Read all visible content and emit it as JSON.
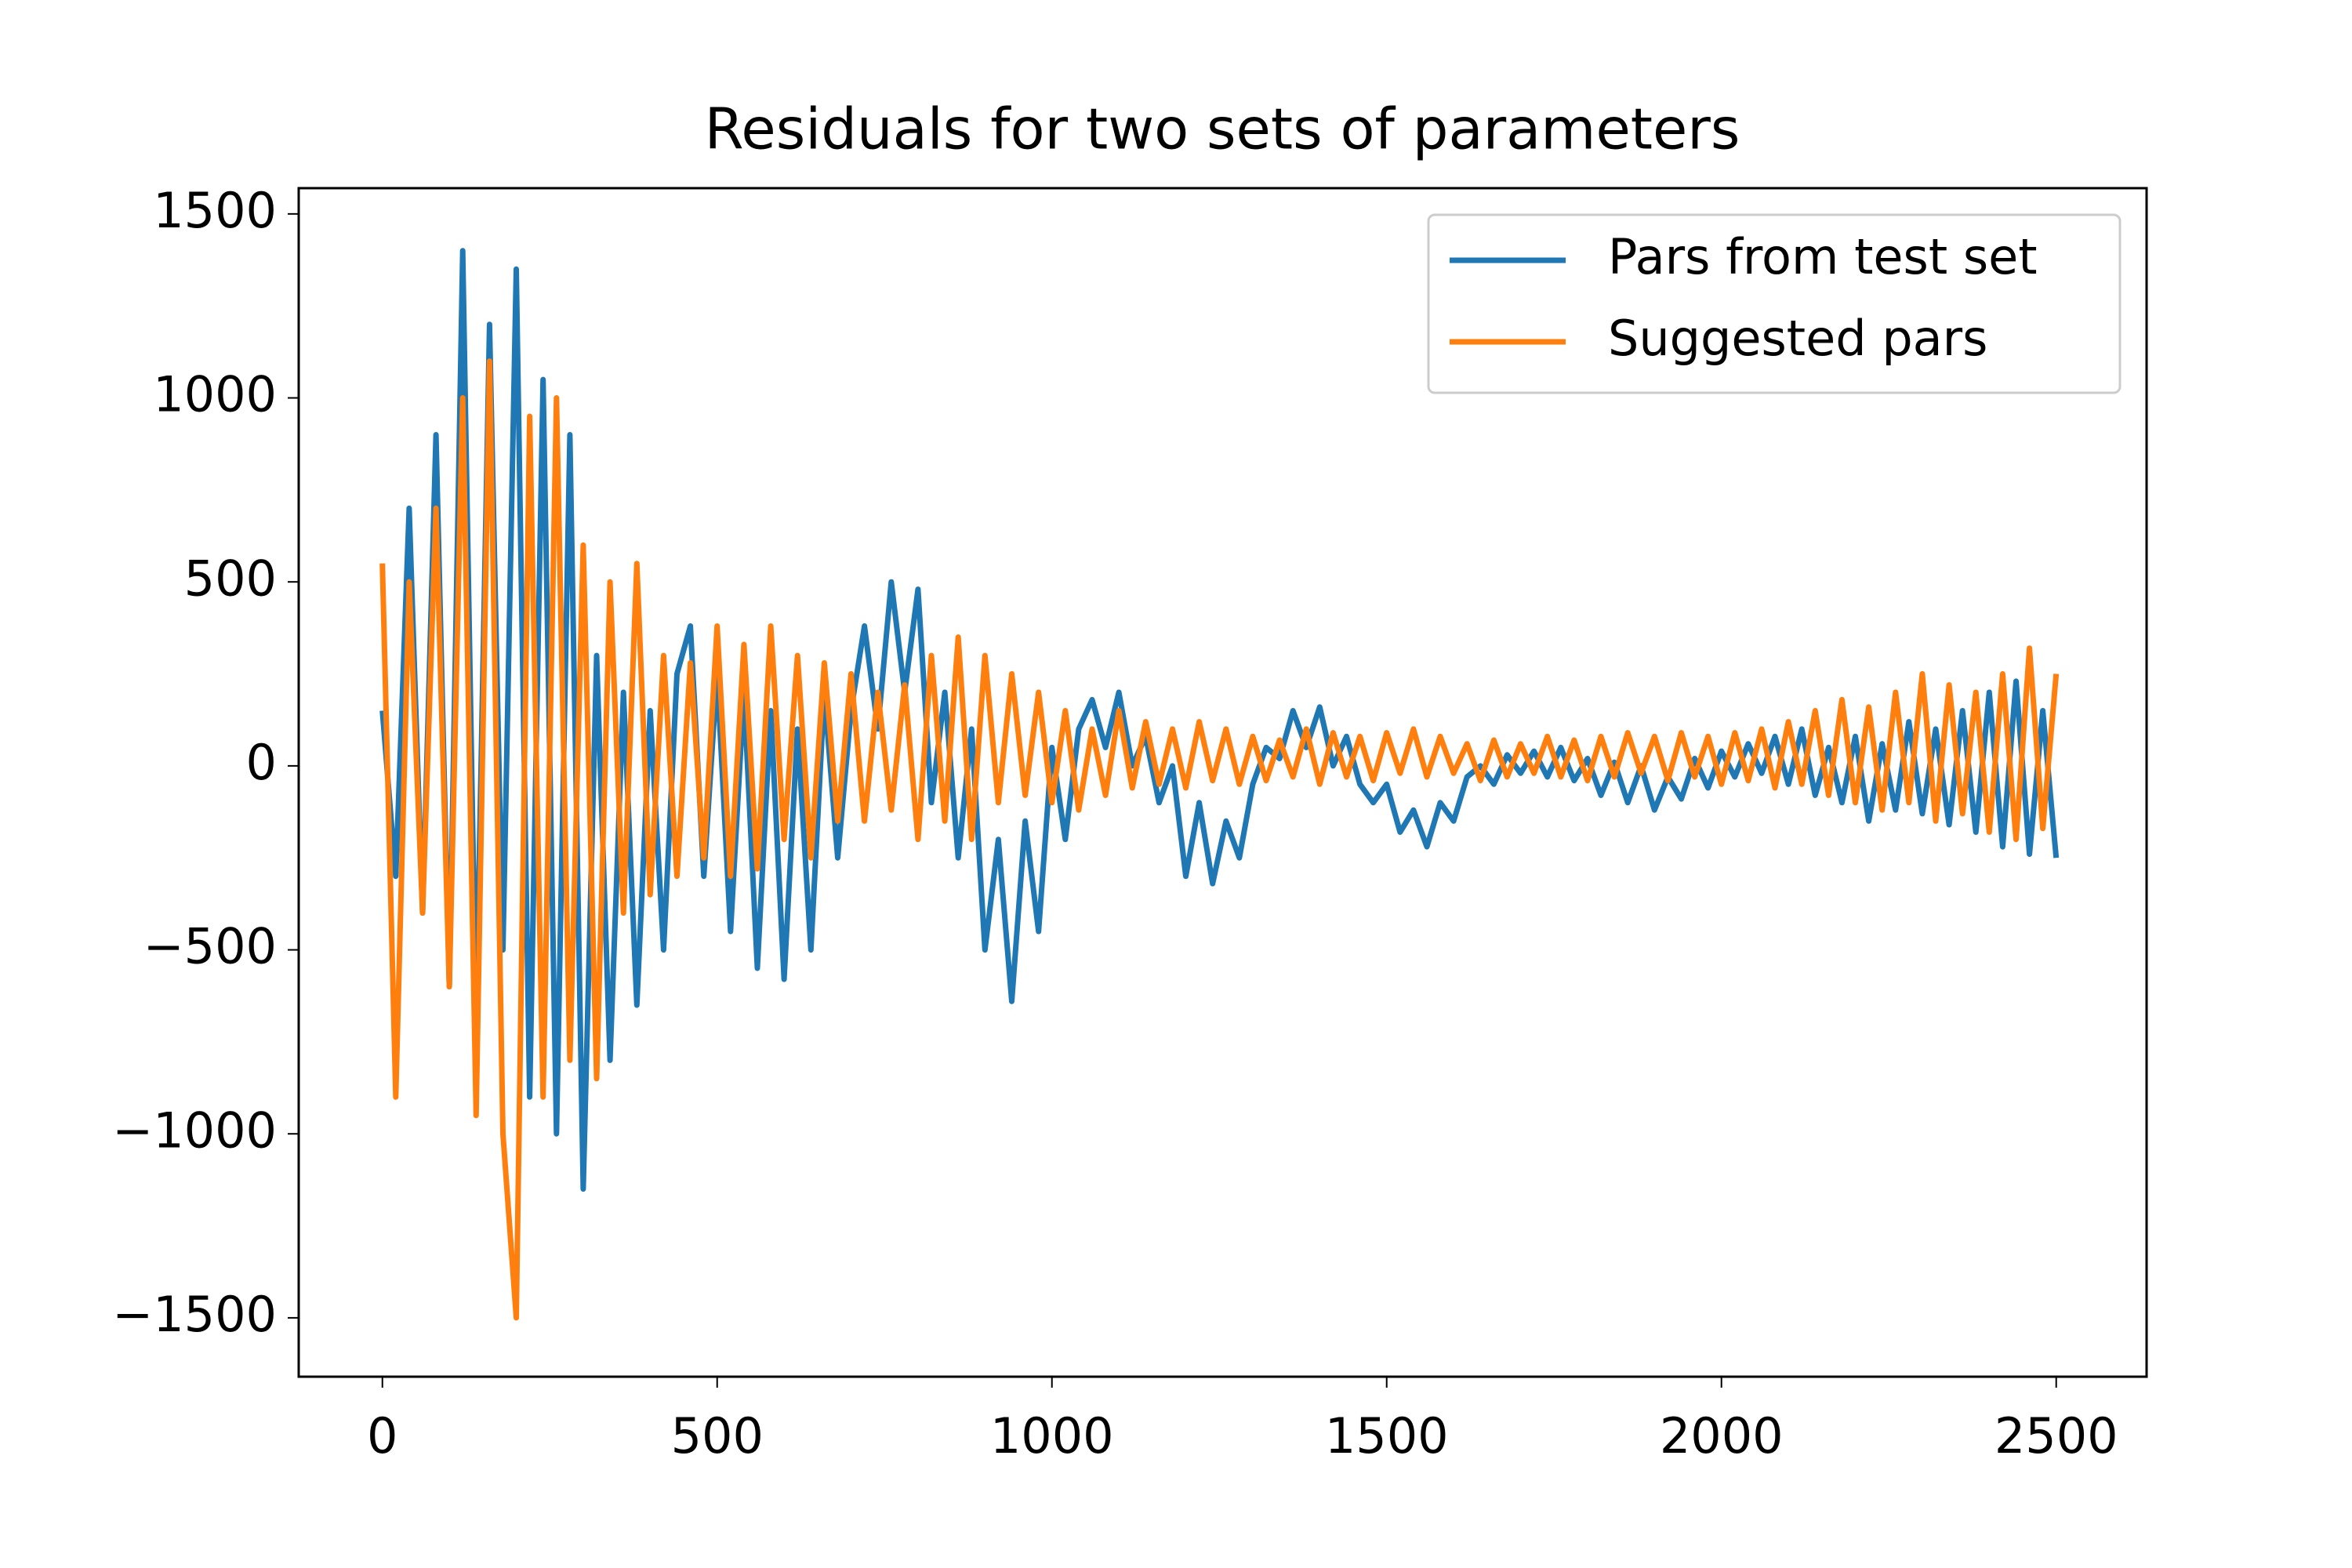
{
  "chart_data": {
    "type": "line",
    "title": "Residuals for two sets of parameters",
    "x": [
      0,
      20,
      40,
      60,
      80,
      100,
      120,
      140,
      160,
      180,
      200,
      220,
      240,
      260,
      280,
      300,
      320,
      340,
      360,
      380,
      400,
      420,
      440,
      460,
      480,
      500,
      520,
      540,
      560,
      580,
      600,
      620,
      640,
      660,
      680,
      700,
      720,
      740,
      760,
      780,
      800,
      820,
      840,
      860,
      880,
      900,
      920,
      940,
      960,
      980,
      1000,
      1020,
      1040,
      1060,
      1080,
      1100,
      1120,
      1140,
      1160,
      1180,
      1200,
      1220,
      1240,
      1260,
      1280,
      1300,
      1320,
      1340,
      1360,
      1380,
      1400,
      1420,
      1440,
      1460,
      1480,
      1500,
      1520,
      1540,
      1560,
      1580,
      1600,
      1620,
      1640,
      1660,
      1680,
      1700,
      1720,
      1740,
      1760,
      1780,
      1800,
      1820,
      1840,
      1860,
      1880,
      1900,
      1920,
      1940,
      1960,
      1980,
      2000,
      2020,
      2040,
      2060,
      2080,
      2100,
      2120,
      2140,
      2160,
      2180,
      2200,
      2220,
      2240,
      2260,
      2280,
      2300,
      2320,
      2340,
      2360,
      2380,
      2400,
      2420,
      2440,
      2460,
      2480,
      2500
    ],
    "series": [
      {
        "name": "Pars from test set",
        "color": "#1f77b4",
        "values": [
          150,
          -300,
          700,
          -400,
          900,
          -600,
          1400,
          -700,
          1200,
          -500,
          1350,
          -900,
          1050,
          -1000,
          900,
          -1150,
          300,
          -800,
          200,
          -650,
          150,
          -500,
          250,
          380,
          -300,
          250,
          -450,
          200,
          -550,
          150,
          -580,
          100,
          -500,
          200,
          -250,
          150,
          380,
          100,
          500,
          200,
          480,
          -100,
          200,
          -250,
          100,
          -500,
          -200,
          -640,
          -150,
          -450,
          50,
          -200,
          100,
          180,
          50,
          200,
          0,
          80,
          -100,
          0,
          -300,
          -100,
          -320,
          -150,
          -250,
          -50,
          50,
          20,
          150,
          50,
          160,
          0,
          80,
          -50,
          -100,
          -50,
          -180,
          -120,
          -220,
          -100,
          -150,
          -30,
          0,
          -50,
          30,
          -20,
          40,
          -30,
          50,
          -40,
          20,
          -80,
          10,
          -100,
          0,
          -120,
          -30,
          -90,
          20,
          -60,
          40,
          -30,
          60,
          -20,
          80,
          -50,
          100,
          -80,
          50,
          -100,
          80,
          -150,
          60,
          -120,
          120,
          -130,
          100,
          -160,
          150,
          -180,
          200,
          -220,
          230,
          -240,
          150,
          -250
        ]
      },
      {
        "name": "Suggested pars",
        "color": "#ff7f0e",
        "values": [
          550,
          -900,
          500,
          -400,
          700,
          -600,
          1000,
          -950,
          1100,
          -1000,
          -1500,
          950,
          -900,
          1000,
          -800,
          600,
          -850,
          500,
          -400,
          550,
          -350,
          300,
          -300,
          280,
          -250,
          380,
          -300,
          330,
          -280,
          380,
          -200,
          300,
          -250,
          280,
          -150,
          250,
          -150,
          200,
          -120,
          220,
          -200,
          300,
          -150,
          350,
          -200,
          300,
          -100,
          250,
          -80,
          200,
          -100,
          150,
          -120,
          100,
          -80,
          150,
          -60,
          120,
          -50,
          100,
          -60,
          120,
          -40,
          100,
          -50,
          80,
          -40,
          70,
          -30,
          100,
          -50,
          90,
          -30,
          80,
          -40,
          90,
          -20,
          100,
          -30,
          80,
          -20,
          60,
          -40,
          70,
          -30,
          60,
          -20,
          80,
          -30,
          70,
          -40,
          80,
          -30,
          90,
          -20,
          80,
          -40,
          90,
          -30,
          80,
          -50,
          90,
          -40,
          100,
          -60,
          120,
          -50,
          150,
          -80,
          180,
          -100,
          160,
          -120,
          200,
          -100,
          250,
          -150,
          220,
          -130,
          200,
          -180,
          250,
          -200,
          320,
          -170,
          250
        ]
      }
    ],
    "xlim": [
      -125,
      2635
    ],
    "ylim": [
      -1660,
      1570
    ],
    "xticks": [
      0,
      500,
      1000,
      1500,
      2000,
      2500
    ],
    "yticks": [
      {
        "value": -1500,
        "label": "−1500"
      },
      {
        "value": -1000,
        "label": "−1000"
      },
      {
        "value": -500,
        "label": "−500"
      },
      0,
      500,
      1000,
      1500
    ],
    "legend": "upper right"
  }
}
